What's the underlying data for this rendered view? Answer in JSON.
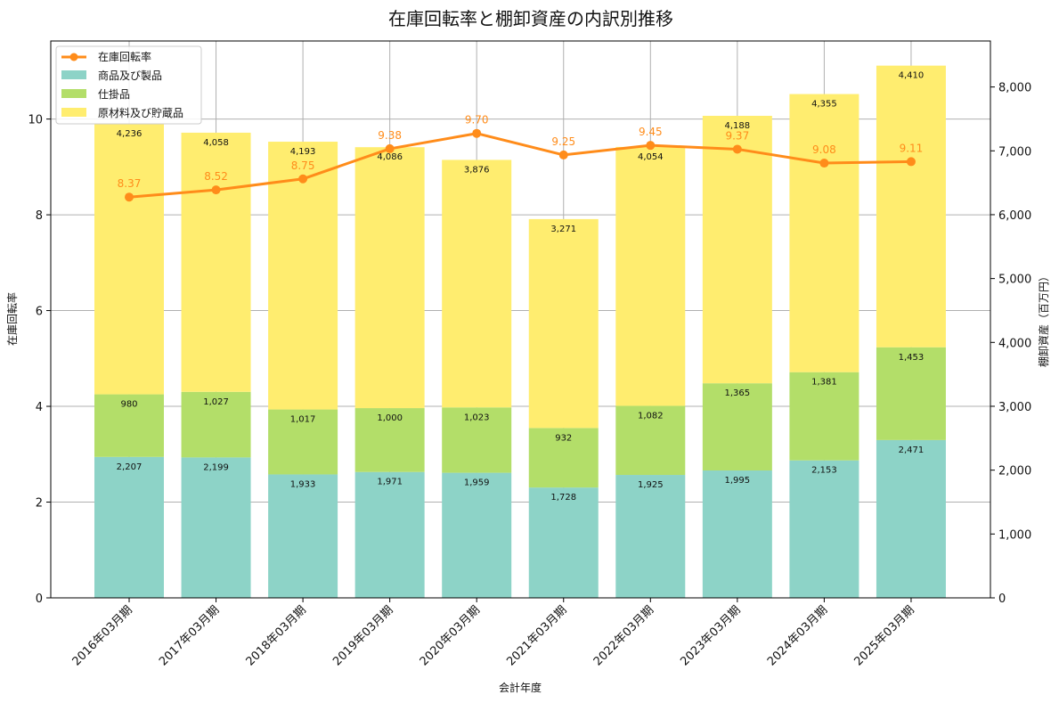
{
  "chart_data": {
    "type": "bar",
    "title": "在庫回転率と棚卸資産の内訳別推移",
    "xlabel": "会計年度",
    "ylabel_left": "在庫回転率",
    "ylabel_right": "棚卸資産（百万円）",
    "categories": [
      "2016年03月期",
      "2017年03月期",
      "2018年03月期",
      "2019年03月期",
      "2020年03月期",
      "2021年03月期",
      "2022年03月期",
      "2023年03月期",
      "2024年03月期",
      "2025年03月期"
    ],
    "series": [
      {
        "name": "商品及び製品",
        "color": "#8dd3c7",
        "axis": "right",
        "values": [
          2207,
          2199,
          1933,
          1971,
          1959,
          1728,
          1925,
          1995,
          2153,
          2471
        ],
        "labels": [
          "2,207",
          "2,199",
          "1,933",
          "1,971",
          "1,959",
          "1,728",
          "1,925",
          "1,995",
          "2,153",
          "2,471"
        ]
      },
      {
        "name": "仕掛品",
        "color": "#b3de69",
        "axis": "right",
        "values": [
          980,
          1027,
          1017,
          1000,
          1023,
          932,
          1082,
          1365,
          1381,
          1453
        ],
        "labels": [
          "980",
          "1,027",
          "1,017",
          "1,000",
          "1,023",
          "932",
          "1,082",
          "1,365",
          "1,381",
          "1,453"
        ]
      },
      {
        "name": "原材料及び貯蔵品",
        "color": "#ffed6f",
        "axis": "right",
        "values": [
          4236,
          4058,
          4193,
          4086,
          3876,
          3271,
          4054,
          4188,
          4355,
          4410
        ],
        "labels": [
          "4,236",
          "4,058",
          "4,193",
          "4,086",
          "3,876",
          "3,271",
          "4,054",
          "4,188",
          "4,355",
          "4,410"
        ]
      },
      {
        "name": "在庫回転率",
        "type": "line",
        "color": "#ff8c1a",
        "axis": "left",
        "values": [
          8.37,
          8.52,
          8.75,
          9.38,
          9.7,
          9.25,
          9.45,
          9.37,
          9.08,
          9.11
        ],
        "labels": [
          "8.37",
          "8.52",
          "8.75",
          "9.38",
          "9.70",
          "9.25",
          "9.45",
          "9.37",
          "9.08",
          "9.11"
        ]
      }
    ],
    "ylim_left": [
      0,
      11.63
    ],
    "ylim_right": [
      0,
      8720
    ],
    "yticks_left": [
      0,
      2,
      4,
      6,
      8,
      10
    ],
    "yticks_left_labels": [
      "0",
      "2",
      "4",
      "6",
      "8",
      "10"
    ],
    "yticks_right": [
      0,
      1000,
      2000,
      3000,
      4000,
      5000,
      6000,
      7000,
      8000
    ],
    "yticks_right_labels": [
      "0",
      "1,000",
      "2,000",
      "3,000",
      "4,000",
      "5,000",
      "6,000",
      "7,000",
      "8,000"
    ],
    "legend": [
      "在庫回転率",
      "商品及び製品",
      "仕掛品",
      "原材料及び貯蔵品"
    ],
    "legend_position": "top-left",
    "grid": true
  }
}
